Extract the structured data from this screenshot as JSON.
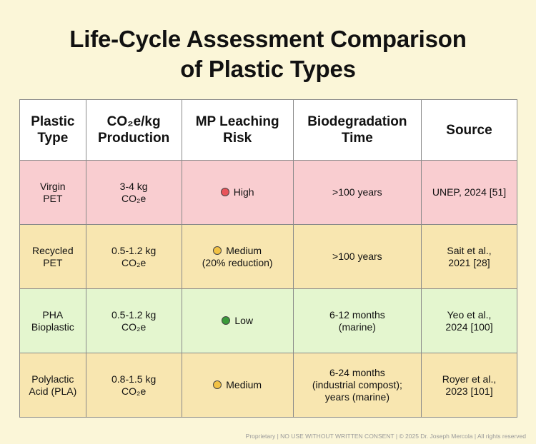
{
  "title": {
    "line1": "Life-Cycle Assessment Comparison",
    "line2": "of Plastic Types"
  },
  "table": {
    "headers": {
      "type": [
        "Plastic",
        "Type"
      ],
      "co2": [
        "CO₂e/kg",
        "Production"
      ],
      "mp": [
        "MP Leaching",
        "Risk"
      ],
      "bio": [
        "Biodegradation",
        "Time"
      ],
      "source": [
        "Source"
      ]
    },
    "rows": [
      {
        "type": [
          "Virgin",
          "PET"
        ],
        "co2": [
          "3-4 kg",
          "CO₂e"
        ],
        "mp": [
          "High"
        ],
        "risk_color": "#e8545a",
        "bio": [
          ">100 years"
        ],
        "source": [
          "UNEP, 2024 [51]"
        ]
      },
      {
        "type": [
          "Recycled",
          "PET"
        ],
        "co2": [
          "0.5-1.2 kg",
          "CO₂e"
        ],
        "mp": [
          "Medium",
          "(20% reduction)"
        ],
        "risk_color": "#f2c244",
        "bio": [
          ">100 years"
        ],
        "source": [
          "Sait et al.,",
          "2021 [28]"
        ]
      },
      {
        "type": [
          "PHA",
          "Bioplastic"
        ],
        "co2": [
          "0.5-1.2 kg",
          "CO₂e"
        ],
        "mp": [
          "Low"
        ],
        "risk_color": "#3a9a3a",
        "bio": [
          "6-12 months",
          "(marine)"
        ],
        "source": [
          "Yeo et al.,",
          "2024 [100]"
        ]
      },
      {
        "type": [
          "Polylactic",
          "Acid (PLA)"
        ],
        "co2": [
          "0.8-1.5 kg",
          "CO₂e"
        ],
        "mp": [
          "Medium"
        ],
        "risk_color": "#f2c244",
        "bio": [
          "6-24 months",
          "(industrial compost);",
          "years (marine)"
        ],
        "source": [
          "Royer et al.,",
          "2023 [101]"
        ]
      }
    ]
  },
  "footer": "Proprietary | NO USE WITHOUT WRITTEN CONSENT | © 2025 Dr. Joseph Mercola | All rights reserved"
}
